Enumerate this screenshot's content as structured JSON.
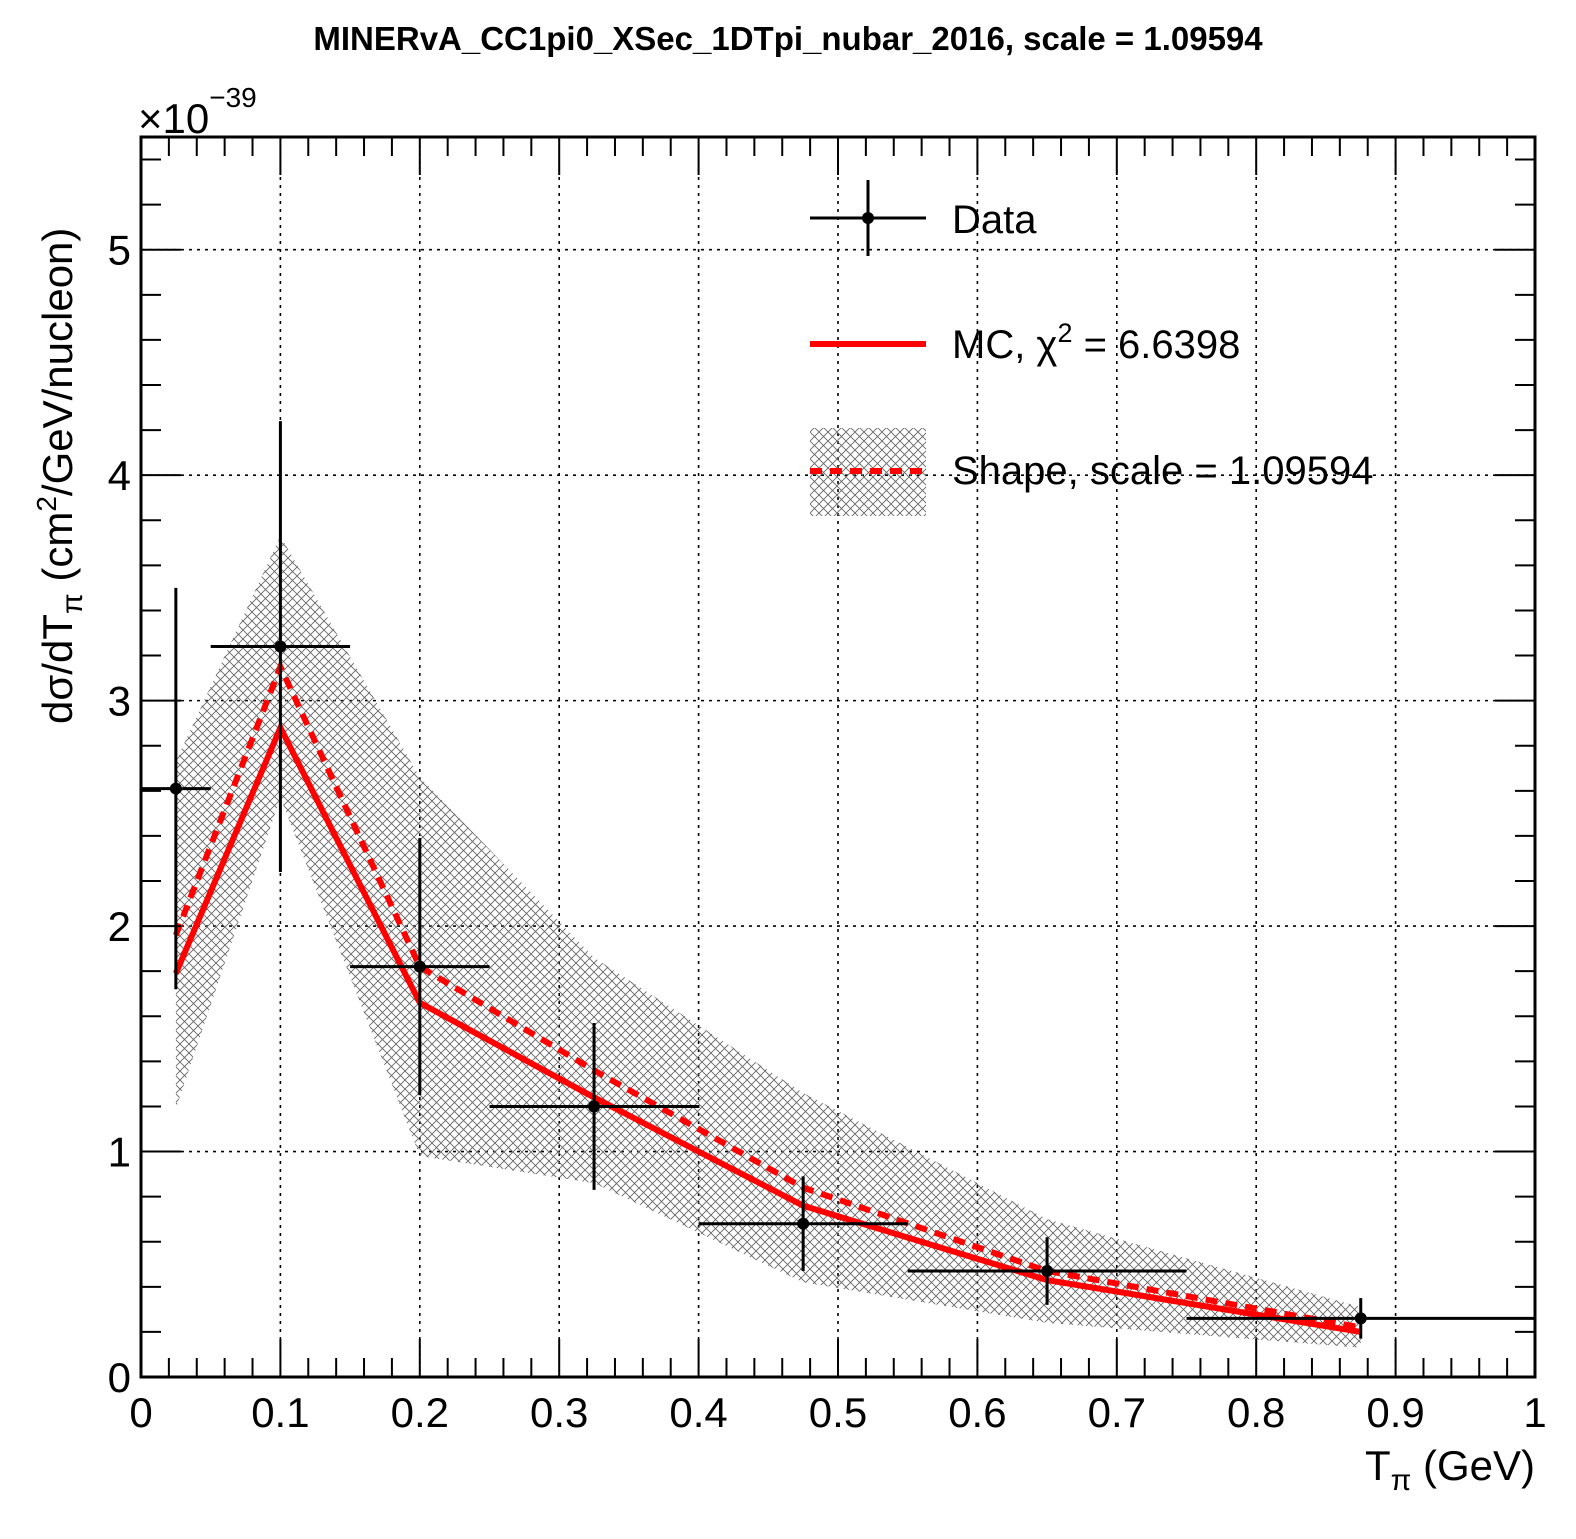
{
  "chart_data": {
    "type": "line",
    "title": "MINERvA_CC1pi0_XSec_1DTpi_nubar_2016, scale = 1.09594",
    "xlabel": {
      "main": "T",
      "sub": "π",
      "rest": " (GeV)"
    },
    "ylabel": {
      "pre": "dσ/dT",
      "sub": "π",
      "mid": " (cm",
      "sup": "2",
      "post": "/GeV/nucleon)"
    },
    "y_multiplier": {
      "base": "×10",
      "exp": "−39"
    },
    "xlim": [
      0,
      1
    ],
    "ylim": [
      0,
      5.5
    ],
    "xticks": [
      0,
      0.1,
      0.2,
      0.3,
      0.4,
      0.5,
      0.6,
      0.7,
      0.8,
      0.9,
      1
    ],
    "xtick_labels": [
      "0",
      "0.1",
      "0.2",
      "0.3",
      "0.4",
      "0.5",
      "0.6",
      "0.7",
      "0.8",
      "0.9",
      "1"
    ],
    "yticks": [
      0,
      1,
      2,
      3,
      4,
      5
    ],
    "ytick_labels": [
      "0",
      "1",
      "2",
      "3",
      "4",
      "5"
    ],
    "grid": true,
    "legend_position": "top-right",
    "legend": {
      "data": "Data",
      "mc": {
        "pre": "MC, χ",
        "sup": "2",
        "post": " = 6.6398"
      },
      "shape": "Shape, scale = 1.09594"
    },
    "colors": {
      "data": "#000000",
      "mc": "#ff0000",
      "shape": "#ff0000",
      "band": "#555555"
    },
    "series": [
      {
        "name": "Data",
        "x": [
          0.025,
          0.1,
          0.2,
          0.325,
          0.475,
          0.65,
          0.875
        ],
        "xerr_low": [
          0.025,
          0.05,
          0.05,
          0.075,
          0.075,
          0.1,
          0.125
        ],
        "xerr_high": [
          0.025,
          0.05,
          0.05,
          0.075,
          0.075,
          0.1,
          0.125
        ],
        "y": [
          2.61,
          3.24,
          1.82,
          1.2,
          0.68,
          0.47,
          0.26
        ],
        "yerr": [
          0.89,
          1.0,
          0.57,
          0.37,
          0.21,
          0.15,
          0.09
        ]
      },
      {
        "name": "MC",
        "x": [
          0.025,
          0.1,
          0.2,
          0.325,
          0.475,
          0.65,
          0.875
        ],
        "y": [
          1.79,
          2.88,
          1.66,
          1.24,
          0.76,
          0.43,
          0.2
        ]
      },
      {
        "name": "Shape",
        "x": [
          0.025,
          0.1,
          0.2,
          0.325,
          0.475,
          0.65,
          0.875
        ],
        "y": [
          1.96,
          3.15,
          1.82,
          1.36,
          0.84,
          0.47,
          0.22
        ],
        "band_low": [
          1.19,
          2.57,
          0.98,
          0.86,
          0.42,
          0.24,
          0.13
        ],
        "band_high": [
          2.73,
          3.73,
          2.66,
          1.86,
          1.26,
          0.7,
          0.31
        ]
      }
    ]
  }
}
